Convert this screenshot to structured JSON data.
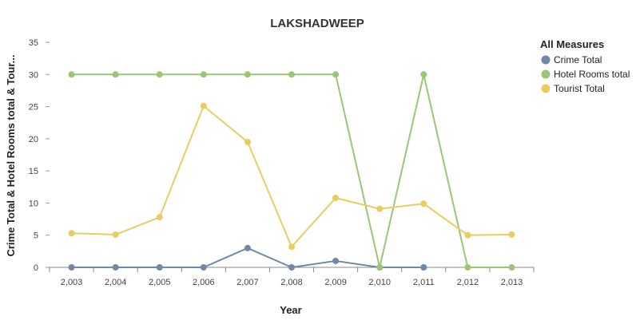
{
  "chart_data": {
    "type": "line",
    "title": "LAKSHADWEEP",
    "xlabel": "Year",
    "ylabel": "Crime Total & Hotel Rooms total & Tour...",
    "categories": [
      "2,003",
      "2,004",
      "2,005",
      "2,006",
      "2,007",
      "2,008",
      "2,009",
      "2,010",
      "2,011",
      "2,012",
      "2,013"
    ],
    "ylim": [
      0,
      35
    ],
    "yticks": [
      0,
      5,
      10,
      15,
      20,
      25,
      30,
      35
    ],
    "grid": false,
    "legend": {
      "title": "All Measures",
      "placement": "right"
    },
    "series": [
      {
        "name": "Crime Total",
        "color": "#7088a9",
        "values": [
          0,
          0,
          0,
          0,
          3,
          0,
          1,
          0,
          0,
          null,
          null
        ]
      },
      {
        "name": "Hotel Rooms total",
        "color": "#99c777",
        "values": [
          30,
          30,
          30,
          30,
          30,
          30,
          30,
          0,
          30,
          0,
          0
        ]
      },
      {
        "name": "Tourist Total",
        "color": "#eacd5f",
        "values": [
          5.3,
          5.1,
          7.8,
          25.1,
          19.5,
          3.2,
          10.8,
          9.1,
          9.9,
          5.0,
          5.1
        ]
      }
    ]
  }
}
